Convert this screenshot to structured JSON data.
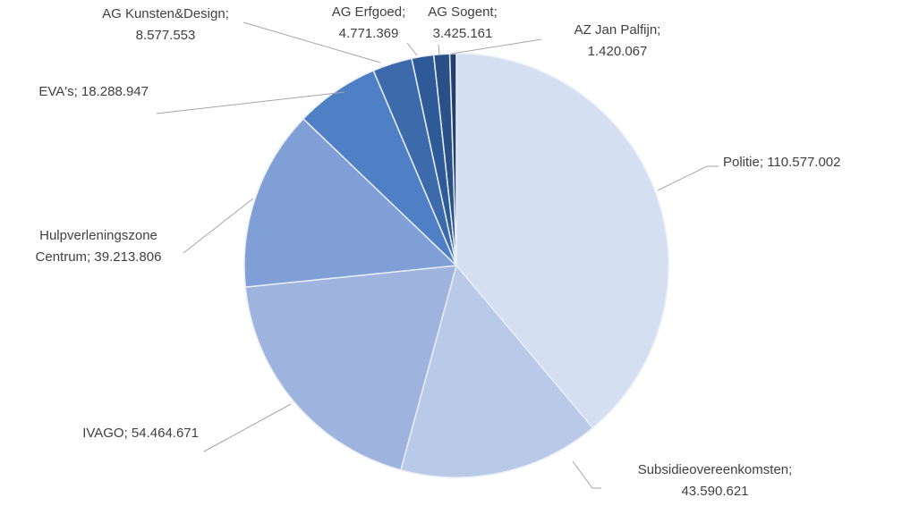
{
  "chart_data": {
    "type": "pie",
    "labels": [
      "Politie; 110.577.002",
      "Subsidieovereenkomsten;\n43.590.621",
      "IVAGO; 54.464.671",
      "Hulpverleningszone\nCentrum; 39.213.806",
      "EVA's;  18.288.947",
      "AG Kunsten&Design;\n8.577.553",
      "AG Erfgoed;\n4.771.369",
      "AG Sogent;\n3.425.161",
      "AZ Jan Palfijn;\n1.420.067"
    ],
    "values": [
      110577002,
      43590621,
      54464671,
      39213806,
      18288947,
      8577553,
      4771369,
      3425161,
      1420067
    ],
    "colors": [
      "#d5dff2",
      "#b9c9e8",
      "#9fb3df",
      "#7f9fd6",
      "#4f7fc4",
      "#3d6aab",
      "#2f5a98",
      "#2a5088",
      "#233f6e"
    ]
  }
}
